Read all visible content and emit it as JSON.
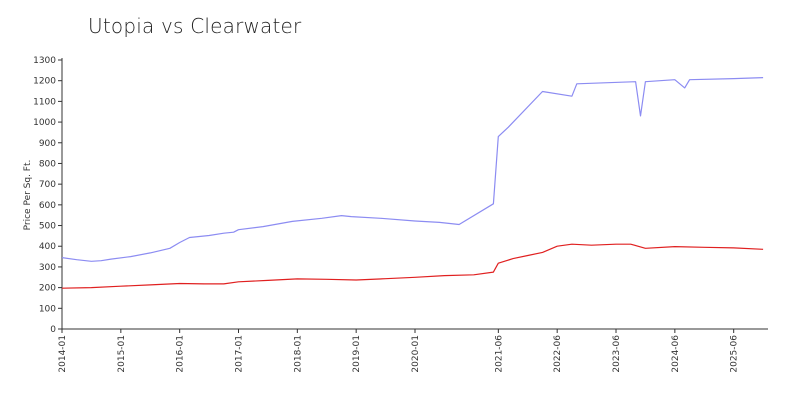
{
  "chart_data": {
    "type": "line",
    "title": "Utopia vs Clearwater",
    "xlabel": "",
    "ylabel": "Price Per Sq. Ft.",
    "ylim": [
      0,
      1300
    ],
    "y_ticks": [
      0,
      100,
      200,
      300,
      400,
      500,
      600,
      700,
      800,
      900,
      1000,
      1100,
      1200,
      1300
    ],
    "x_ticks": [
      "2014-01",
      "2015-01",
      "2016-01",
      "2017-01",
      "2018-01",
      "2019-01",
      "2020-01",
      "2021-06",
      "2022-06",
      "2023-06",
      "2024-06",
      "2025-06"
    ],
    "grid": false,
    "legend": "none",
    "series": [
      {
        "color": "#8c8cf2",
        "points": [
          [
            "2014-01",
            345
          ],
          [
            "2014-04",
            335
          ],
          [
            "2014-07",
            327
          ],
          [
            "2014-09",
            330
          ],
          [
            "2014-11",
            338
          ],
          [
            "2015-03",
            350
          ],
          [
            "2015-07",
            368
          ],
          [
            "2015-11",
            390
          ],
          [
            "2016-01",
            418
          ],
          [
            "2016-03",
            442
          ],
          [
            "2016-07",
            452
          ],
          [
            "2016-10",
            463
          ],
          [
            "2016-12",
            468
          ],
          [
            "2017-01",
            480
          ],
          [
            "2017-06",
            495
          ],
          [
            "2017-12",
            520
          ],
          [
            "2018-06",
            535
          ],
          [
            "2018-10",
            548
          ],
          [
            "2018-12",
            543
          ],
          [
            "2019-06",
            535
          ],
          [
            "2020-01",
            522
          ],
          [
            "2020-06",
            515
          ],
          [
            "2020-10",
            505
          ],
          [
            "2021-05",
            605
          ],
          [
            "2021-06",
            930
          ],
          [
            "2021-08",
            975
          ],
          [
            "2022-03",
            1148
          ],
          [
            "2022-09",
            1125
          ],
          [
            "2022-10",
            1185
          ],
          [
            "2023-10",
            1195
          ],
          [
            "2023-11",
            1030
          ],
          [
            "2023-12",
            1195
          ],
          [
            "2024-06",
            1205
          ],
          [
            "2024-08",
            1165
          ],
          [
            "2024-09",
            1205
          ],
          [
            "2025-06",
            1210
          ],
          [
            "2025-12",
            1215
          ]
        ]
      },
      {
        "color": "#e02020",
        "points": [
          [
            "2014-01",
            197
          ],
          [
            "2014-07",
            200
          ],
          [
            "2015-01",
            207
          ],
          [
            "2015-07",
            213
          ],
          [
            "2016-01",
            220
          ],
          [
            "2016-06",
            218
          ],
          [
            "2016-10",
            218
          ],
          [
            "2017-01",
            228
          ],
          [
            "2017-07",
            235
          ],
          [
            "2018-01",
            242
          ],
          [
            "2018-07",
            240
          ],
          [
            "2019-01",
            237
          ],
          [
            "2019-07",
            243
          ],
          [
            "2020-01",
            250
          ],
          [
            "2020-07",
            258
          ],
          [
            "2021-01",
            262
          ],
          [
            "2021-05",
            275
          ],
          [
            "2021-06",
            318
          ],
          [
            "2021-09",
            340
          ],
          [
            "2021-12",
            355
          ],
          [
            "2022-03",
            370
          ],
          [
            "2022-06",
            400
          ],
          [
            "2022-09",
            410
          ],
          [
            "2023-01",
            405
          ],
          [
            "2023-06",
            410
          ],
          [
            "2023-09",
            410
          ],
          [
            "2023-12",
            390
          ],
          [
            "2024-06",
            398
          ],
          [
            "2024-12",
            395
          ],
          [
            "2025-06",
            392
          ],
          [
            "2025-12",
            385
          ]
        ]
      }
    ]
  }
}
